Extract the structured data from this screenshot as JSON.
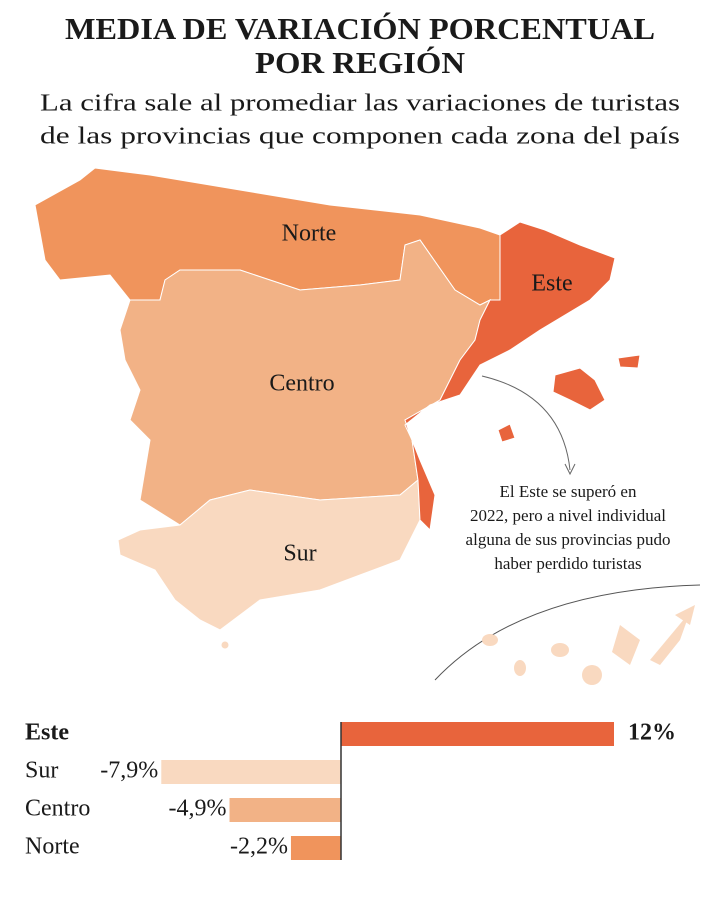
{
  "title": [
    "MEDIA DE VARIACIÓN PORCENTUAL",
    "POR REGIÓN"
  ],
  "subtitle": [
    "La cifra sale al promediar las variaciones de turistas",
    "de las provincias que componen cada zona del país"
  ],
  "annotation": [
    "El Este se superó en",
    "2022, pero a nivel individual",
    "alguna de sus provincias pudo",
    "haber perdido turistas"
  ],
  "chart_data": {
    "type": "bar",
    "orientation": "horizontal",
    "categories": [
      "Este",
      "Sur",
      "Centro",
      "Norte"
    ],
    "values": [
      12,
      -7.9,
      -4.9,
      -2.2
    ],
    "value_labels": [
      "12%",
      "-7,9%",
      "-4,9%",
      "-2,2%"
    ],
    "colors": [
      "#e8643c",
      "#f9d9c0",
      "#f2b286",
      "#f0945c"
    ]
  }
}
